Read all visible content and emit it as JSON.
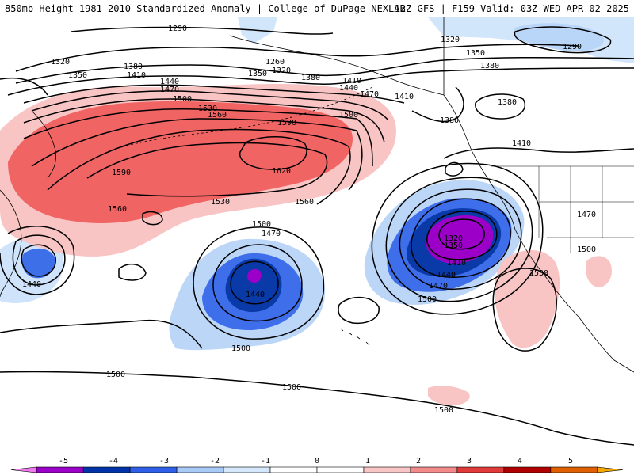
{
  "header": {
    "title_left": "850mb Height 1981-2010 Standardized Anomaly | College of DuPage NEXLAB",
    "title_right": "12Z GFS | F159 Valid: 03Z WED APR 02 2025"
  },
  "contour_labels": [
    "1290",
    "1320",
    "1350",
    "1380",
    "1410",
    "1440",
    "1470",
    "1500",
    "1530",
    "1560",
    "1590",
    "1620",
    "1260"
  ],
  "colorbar": {
    "ticks": [
      "-5",
      "-4",
      "-3",
      "-2",
      "-1",
      "0",
      "1",
      "2",
      "3",
      "4",
      "5"
    ],
    "colors": [
      "#f07af0",
      "#9a00c8",
      "#0033a8",
      "#2f5fe8",
      "#a9c9f7",
      "#d4e7fb",
      "#ffffff",
      "#ffffff",
      "#f9c6c6",
      "#f48b8b",
      "#e03a3a",
      "#b00000",
      "#e06000",
      "#f5a800"
    ]
  }
}
